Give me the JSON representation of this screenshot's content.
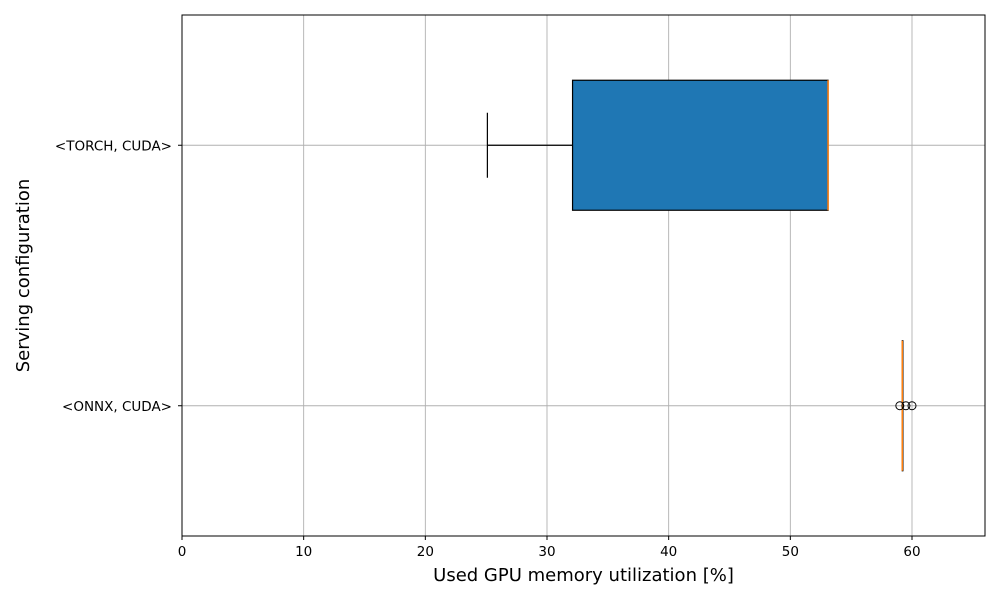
{
  "chart_data": {
    "type": "boxplot",
    "orientation": "horizontal",
    "xlabel": "Used GPU memory utilization [%]",
    "ylabel": "Serving configuration",
    "xlim": [
      0,
      66
    ],
    "xticks": [
      0,
      10,
      20,
      30,
      40,
      50,
      60
    ],
    "grid": true,
    "categories": [
      "<ONNX, CUDA>",
      "<TORCH, CUDA>"
    ],
    "boxes": [
      {
        "category": "<ONNX, CUDA>",
        "whisker_low": 59.2,
        "q1": 59.2,
        "median": 59.2,
        "q3": 59.2,
        "whisker_high": 59.2,
        "outliers": [
          59.0,
          59.5,
          60.0
        ]
      },
      {
        "category": "<TORCH, CUDA>",
        "whisker_low": 25.1,
        "q1": 32.1,
        "median": 53.1,
        "q3": 53.1,
        "whisker_high": 53.1,
        "outliers": []
      }
    ],
    "colors": {
      "box_fill": "#1f77b4",
      "median": "#ff7f0e",
      "grid": "#b0b0b0"
    }
  }
}
